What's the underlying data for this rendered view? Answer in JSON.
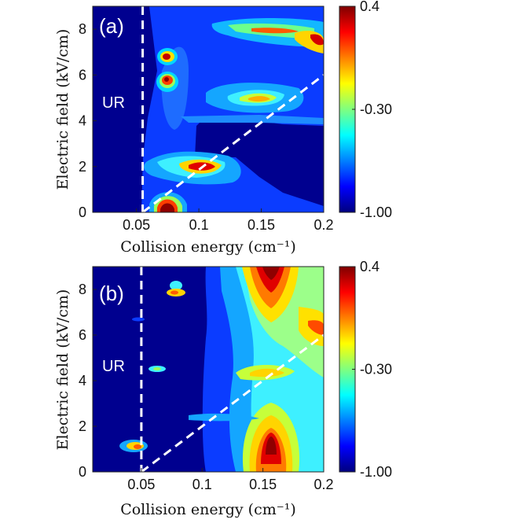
{
  "chart_data": [
    {
      "type": "heatmap",
      "panel_label": "(a)",
      "region_label": "UR",
      "xlabel": "Collision energy (cm⁻¹)",
      "ylabel": "Electric field (kV/cm)",
      "xlim": [
        0.015,
        0.2
      ],
      "ylim": [
        0,
        9
      ],
      "xticks": [
        "0.05",
        "0.1",
        "0.15",
        "0.2"
      ],
      "xtick_values": [
        0.05,
        0.1,
        0.15,
        0.2
      ],
      "yticks": [
        "0",
        "2",
        "4",
        "6",
        "8"
      ],
      "ytick_values": [
        0,
        2,
        4,
        6,
        8
      ],
      "colorbar": {
        "min": -1.0,
        "max": 0.4,
        "ticks": [
          "0.4",
          "-0.30",
          "-1.00"
        ],
        "tick_values": [
          0.4,
          -0.3,
          -1.0
        ]
      },
      "colormap": "jet",
      "vertical_dashed_line_x": 0.055,
      "diagonal_dashed_line": [
        [
          0.055,
          0
        ],
        [
          0.2,
          6.0
        ]
      ],
      "features": [
        {
          "x": 0.079,
          "y": 0.4,
          "value": 0.4
        },
        {
          "x": 0.079,
          "y": 6.6,
          "value": 0.35
        },
        {
          "x": 0.079,
          "y": 5.7,
          "value": 0.3
        },
        {
          "x": 0.106,
          "y": 1.9,
          "value": 0.3
        },
        {
          "x": 0.152,
          "y": 4.8,
          "value": -0.15
        },
        {
          "x": 0.19,
          "y": 7.6,
          "value": 0.25
        },
        {
          "x": 0.155,
          "y": 8.0,
          "value": -0.1
        }
      ]
    },
    {
      "type": "heatmap",
      "panel_label": "(b)",
      "region_label": "UR",
      "xlabel": "Collision energy (cm⁻¹)",
      "ylabel": "Electric field (kV/cm)",
      "xlim": [
        0.01,
        0.2
      ],
      "ylim": [
        0,
        9
      ],
      "xticks": [
        "0.05",
        "0.1",
        "0.15",
        "0.2"
      ],
      "xtick_values": [
        0.05,
        0.1,
        0.15,
        0.2
      ],
      "yticks": [
        "0",
        "2",
        "4",
        "6",
        "8"
      ],
      "ytick_values": [
        0,
        2,
        4,
        6,
        8
      ],
      "colorbar": {
        "min": -1.0,
        "max": 0.4,
        "ticks": [
          "0.4",
          "-0.30",
          "-1.00"
        ],
        "tick_values": [
          0.4,
          -0.3,
          -1.0
        ]
      },
      "colormap": "jet",
      "vertical_dashed_line_x": 0.05,
      "diagonal_dashed_line": [
        [
          0.05,
          0
        ],
        [
          0.2,
          6.0
        ]
      ],
      "features": [
        {
          "x": 0.15,
          "y": 1.2,
          "value": 0.4
        },
        {
          "x": 0.15,
          "y": 8.5,
          "value": 0.4
        },
        {
          "x": 0.19,
          "y": 6.2,
          "value": 0.25
        },
        {
          "x": 0.048,
          "y": 1.1,
          "value": -0.05
        },
        {
          "x": 0.067,
          "y": 8.0,
          "value": -0.1
        },
        {
          "x": 0.065,
          "y": 4.4,
          "value": -0.4
        },
        {
          "x": 0.15,
          "y": 4.6,
          "value": -0.2
        }
      ]
    }
  ]
}
